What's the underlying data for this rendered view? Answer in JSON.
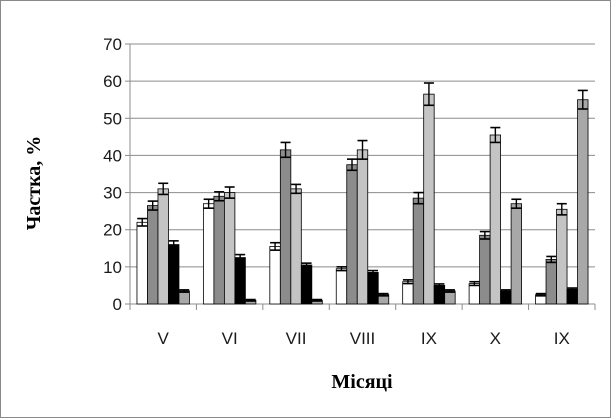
{
  "chart_data": {
    "type": "bar",
    "title": "",
    "xlabel": "Місяці",
    "ylabel": "Частка, %",
    "ylim": [
      0,
      70
    ],
    "yticks": [
      0,
      10,
      20,
      30,
      40,
      50,
      60,
      70
    ],
    "grid": "horizontal",
    "legend": "none",
    "categories": [
      "V",
      "VI",
      "VII",
      "VIII",
      "IX",
      "X",
      "IX"
    ],
    "series": [
      {
        "color": "#ffffff",
        "values": [
          22,
          27,
          15.5,
          9.5,
          6,
          5.5,
          2.5
        ],
        "errors": [
          1,
          1.2,
          1,
          0.5,
          0.5,
          0.5,
          0.3
        ]
      },
      {
        "color": "#8c8c8c",
        "values": [
          26.5,
          29,
          41.5,
          37.5,
          28.5,
          18.5,
          12
        ],
        "errors": [
          1.2,
          1.2,
          2,
          1.5,
          1.5,
          1,
          0.8
        ]
      },
      {
        "color": "#c4c4c4",
        "values": [
          31,
          30,
          31,
          41.5,
          56.5,
          45.5,
          25.5
        ],
        "errors": [
          1.5,
          1.5,
          1.2,
          2.5,
          3,
          2,
          1.5
        ]
      },
      {
        "color": "#000000",
        "values": [
          16,
          12.5,
          10.5,
          8.5,
          5,
          3.5,
          4
        ],
        "errors": [
          1,
          0.8,
          0.5,
          0.5,
          0.4,
          0.3,
          0.3
        ]
      },
      {
        "color": "#a8a8a8",
        "values": [
          3.5,
          1,
          1,
          2.5,
          3.5,
          27,
          55
        ],
        "errors": [
          0.3,
          0.2,
          0.2,
          0.3,
          0.3,
          1.2,
          2.5
        ]
      }
    ]
  }
}
